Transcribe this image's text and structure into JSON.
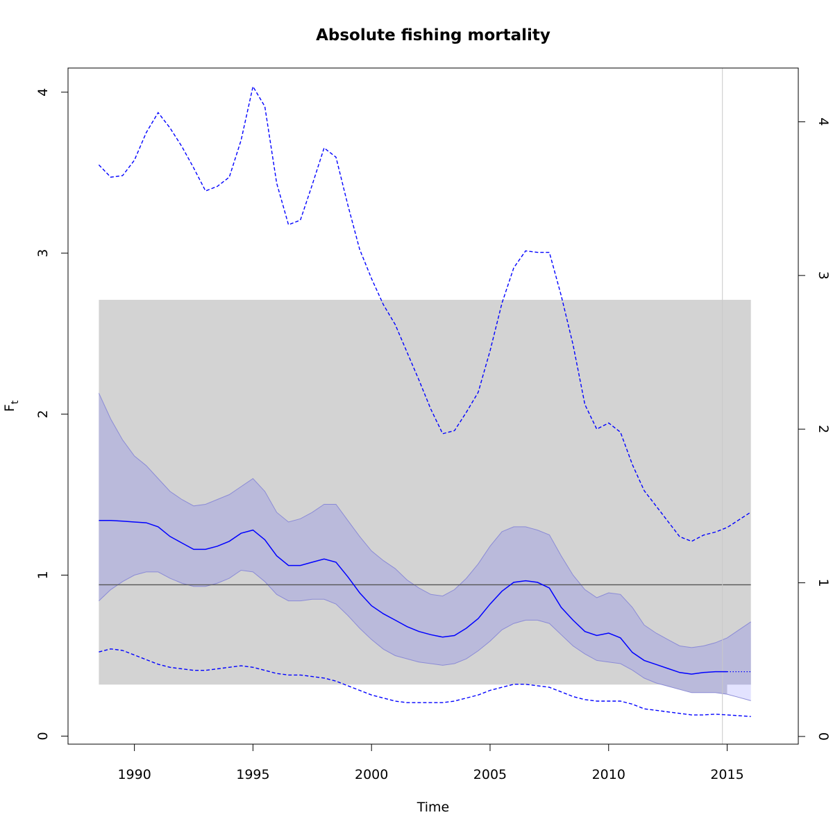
{
  "chart_data": {
    "type": "line",
    "title": "Absolute fishing mortality",
    "xlabel": "Time",
    "ylabel": "F",
    "ylabel_sub": "t",
    "xlim": [
      1987.2,
      2018.0
    ],
    "ylim": [
      -0.05,
      4.15
    ],
    "ylim_right": [
      -0.05,
      4.35
    ],
    "xticks": [
      1990,
      1995,
      2000,
      2005,
      2010,
      2015
    ],
    "yticks": [
      0,
      1,
      2,
      3,
      4
    ],
    "yticks_right": [
      0,
      1,
      2,
      3,
      4
    ],
    "grid": false,
    "legend": "none",
    "colors": {
      "estimate": "#0000ff",
      "band_fill": "#babadb",
      "band_edge": "#8b8bd6",
      "prediction_band": "#e3e3ff",
      "reference_rect": "#d3d3d3",
      "reference_line": "#555555",
      "vline": "#c8c8c8"
    },
    "reference_rect": {
      "x0": 1988.5,
      "x1": 2016.0,
      "y0": 0.32,
      "y1": 2.71
    },
    "reference_line": {
      "x0": 1988.5,
      "x1": 2016.0,
      "y": 0.94
    },
    "vline_x": 2014.8,
    "band_end_x": 2015.0,
    "series": [
      {
        "role": "estimate",
        "x": [
          1988.5,
          1989,
          1989.5,
          1990,
          1990.5,
          1991,
          1991.5,
          1992,
          1992.5,
          1993,
          1993.5,
          1994,
          1994.5,
          1995,
          1995.5,
          1996,
          1996.5,
          1997,
          1997.5,
          1998,
          1998.5,
          1999,
          1999.5,
          2000,
          2000.5,
          2001,
          2001.5,
          2002,
          2002.5,
          2003,
          2003.5,
          2004,
          2004.5,
          2005,
          2005.5,
          2006,
          2006.5,
          2007,
          2007.5,
          2008,
          2008.5,
          2009,
          2009.5,
          2010,
          2010.5,
          2011,
          2011.5,
          2012,
          2012.5,
          2013,
          2013.5,
          2014,
          2014.5,
          2015
        ],
        "y": [
          1.34,
          1.34,
          1.335,
          1.33,
          1.325,
          1.3,
          1.24,
          1.2,
          1.16,
          1.16,
          1.18,
          1.21,
          1.26,
          1.28,
          1.22,
          1.12,
          1.06,
          1.06,
          1.08,
          1.1,
          1.08,
          0.99,
          0.89,
          0.81,
          0.76,
          0.72,
          0.68,
          0.65,
          0.63,
          0.615,
          0.625,
          0.67,
          0.73,
          0.82,
          0.9,
          0.955,
          0.965,
          0.955,
          0.92,
          0.8,
          0.72,
          0.65,
          0.625,
          0.64,
          0.61,
          0.52,
          0.47,
          0.445,
          0.42,
          0.395,
          0.385,
          0.395,
          0.4,
          0.4
        ]
      },
      {
        "role": "estimate_projection",
        "x": [
          2015,
          2016
        ],
        "y": [
          0.4,
          0.4
        ]
      },
      {
        "role": "band_upper",
        "x": [
          1988.5,
          1989,
          1989.5,
          1990,
          1990.5,
          1991,
          1991.5,
          1992,
          1992.5,
          1993,
          1993.5,
          1994,
          1994.5,
          1995,
          1995.5,
          1996,
          1996.5,
          1997,
          1997.5,
          1998,
          1998.5,
          1999,
          1999.5,
          2000,
          2000.5,
          2001,
          2001.5,
          2002,
          2002.5,
          2003,
          2003.5,
          2004,
          2004.5,
          2005,
          2005.5,
          2006,
          2006.5,
          2007,
          2007.5,
          2008,
          2008.5,
          2009,
          2009.5,
          2010,
          2010.5,
          2011,
          2011.5,
          2012,
          2012.5,
          2013,
          2013.5,
          2014,
          2014.5,
          2015,
          2015.5,
          2016
        ],
        "y": [
          2.13,
          1.97,
          1.84,
          1.74,
          1.68,
          1.6,
          1.52,
          1.47,
          1.43,
          1.44,
          1.47,
          1.5,
          1.55,
          1.6,
          1.52,
          1.39,
          1.33,
          1.35,
          1.39,
          1.44,
          1.44,
          1.34,
          1.24,
          1.15,
          1.09,
          1.04,
          0.97,
          0.92,
          0.88,
          0.87,
          0.91,
          0.98,
          1.07,
          1.18,
          1.27,
          1.3,
          1.3,
          1.28,
          1.25,
          1.12,
          1.0,
          0.91,
          0.86,
          0.89,
          0.88,
          0.8,
          0.69,
          0.64,
          0.6,
          0.56,
          0.55,
          0.56,
          0.58,
          0.61,
          0.66,
          0.71
        ]
      },
      {
        "role": "band_lower",
        "x": [
          1988.5,
          1989,
          1989.5,
          1990,
          1990.5,
          1991,
          1991.5,
          1992,
          1992.5,
          1993,
          1993.5,
          1994,
          1994.5,
          1995,
          1995.5,
          1996,
          1996.5,
          1997,
          1997.5,
          1998,
          1998.5,
          1999,
          1999.5,
          2000,
          2000.5,
          2001,
          2001.5,
          2002,
          2002.5,
          2003,
          2003.5,
          2004,
          2004.5,
          2005,
          2005.5,
          2006,
          2006.5,
          2007,
          2007.5,
          2008,
          2008.5,
          2009,
          2009.5,
          2010,
          2010.5,
          2011,
          2011.5,
          2012,
          2012.5,
          2013,
          2013.5,
          2014,
          2014.5,
          2015,
          2015.5,
          2016
        ],
        "y": [
          0.84,
          0.91,
          0.96,
          1.0,
          1.02,
          1.02,
          0.98,
          0.95,
          0.93,
          0.93,
          0.95,
          0.98,
          1.03,
          1.02,
          0.96,
          0.88,
          0.84,
          0.84,
          0.85,
          0.85,
          0.82,
          0.75,
          0.67,
          0.6,
          0.54,
          0.5,
          0.48,
          0.46,
          0.45,
          0.44,
          0.45,
          0.48,
          0.53,
          0.59,
          0.66,
          0.7,
          0.72,
          0.72,
          0.7,
          0.63,
          0.56,
          0.51,
          0.47,
          0.46,
          0.45,
          0.41,
          0.36,
          0.33,
          0.31,
          0.29,
          0.27,
          0.27,
          0.27,
          0.26,
          0.24,
          0.22
        ]
      },
      {
        "role": "dashed_upper",
        "x": [
          1988.5,
          1989,
          1989.5,
          1990,
          1990.5,
          1991,
          1991.5,
          1992,
          1992.5,
          1993,
          1993.5,
          1994,
          1994.5,
          1995,
          1995.5,
          1996,
          1996.5,
          1997,
          1997.5,
          1998,
          1998.5,
          1999,
          1999.5,
          2000,
          2000.5,
          2001,
          2001.5,
          2002,
          2002.5,
          2003,
          2003.5,
          2004,
          2004.5,
          2005,
          2005.5,
          2006,
          2006.5,
          2007,
          2007.5,
          2008,
          2008.5,
          2009,
          2009.5,
          2010,
          2010.5,
          2011,
          2011.5,
          2012,
          2012.5,
          2013,
          2013.5,
          2014,
          2014.5,
          2015,
          2015.5,
          2016
        ],
        "y": [
          3.72,
          3.64,
          3.65,
          3.75,
          3.93,
          4.06,
          3.96,
          3.84,
          3.7,
          3.55,
          3.58,
          3.64,
          3.88,
          4.23,
          4.1,
          3.6,
          3.33,
          3.36,
          3.59,
          3.83,
          3.77,
          3.46,
          3.17,
          2.98,
          2.81,
          2.68,
          2.5,
          2.32,
          2.13,
          1.97,
          1.99,
          2.11,
          2.24,
          2.51,
          2.82,
          3.05,
          3.16,
          3.15,
          3.15,
          2.87,
          2.55,
          2.16,
          2.0,
          2.04,
          1.98,
          1.77,
          1.6,
          1.5,
          1.4,
          1.3,
          1.27,
          1.31,
          1.33,
          1.36,
          1.41,
          1.46
        ]
      },
      {
        "role": "dashed_lower",
        "x": [
          1988.5,
          1989,
          1989.5,
          1990,
          1990.5,
          1991,
          1991.5,
          1992,
          1992.5,
          1993,
          1993.5,
          1994,
          1994.5,
          1995,
          1995.5,
          1996,
          1996.5,
          1997,
          1997.5,
          1998,
          1998.5,
          1999,
          1999.5,
          2000,
          2000.5,
          2001,
          2001.5,
          2002,
          2002.5,
          2003,
          2003.5,
          2004,
          2004.5,
          2005,
          2005.5,
          2006,
          2006.5,
          2007,
          2007.5,
          2008,
          2008.5,
          2009,
          2009.5,
          2010,
          2010.5,
          2011,
          2011.5,
          2012,
          2012.5,
          2013,
          2013.5,
          2014,
          2014.5,
          2015,
          2015.5,
          2016
        ],
        "y": [
          0.55,
          0.57,
          0.56,
          0.53,
          0.5,
          0.47,
          0.45,
          0.44,
          0.43,
          0.43,
          0.44,
          0.45,
          0.46,
          0.45,
          0.43,
          0.41,
          0.4,
          0.4,
          0.39,
          0.38,
          0.36,
          0.33,
          0.3,
          0.27,
          0.25,
          0.23,
          0.22,
          0.22,
          0.22,
          0.22,
          0.23,
          0.25,
          0.27,
          0.3,
          0.32,
          0.34,
          0.34,
          0.33,
          0.32,
          0.29,
          0.26,
          0.24,
          0.23,
          0.23,
          0.23,
          0.21,
          0.18,
          0.17,
          0.16,
          0.15,
          0.14,
          0.14,
          0.145,
          0.14,
          0.135,
          0.13
        ]
      }
    ]
  }
}
